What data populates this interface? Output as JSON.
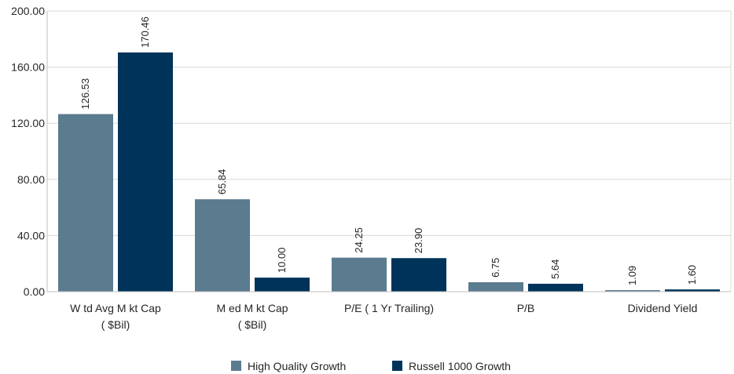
{
  "chart_data": {
    "type": "bar",
    "categories": [
      [
        "W td Avg M kt Cap",
        "( $Bil)"
      ],
      [
        "M ed M kt Cap",
        "( $Bil)"
      ],
      [
        "P/E ( 1 Yr Trailing)"
      ],
      [
        "P/B"
      ],
      [
        "Dividend Yield"
      ]
    ],
    "series": [
      {
        "name": "High Quality Growth",
        "color": "#5b7b8f",
        "values": [
          126.53,
          65.84,
          24.25,
          6.75,
          1.09
        ],
        "labels": [
          "126.53",
          "65.84",
          "24.25",
          "6.75",
          "1.09"
        ]
      },
      {
        "name": "Russell 1000 Growth",
        "color": "#003359",
        "values": [
          170.46,
          10.0,
          23.9,
          5.64,
          1.6
        ],
        "labels": [
          "170.46",
          "10.00",
          "23.90",
          "5.64",
          "1.60"
        ]
      }
    ],
    "ylim": [
      0,
      200
    ],
    "yticks": [
      0,
      40,
      80,
      120,
      160,
      200
    ],
    "ytick_labels": [
      "0.00",
      "40.00",
      "80.00",
      "120.00",
      "160.00",
      "200.00"
    ],
    "grid": true,
    "legend_position": "bottom",
    "title": "",
    "xlabel": "",
    "ylabel": ""
  }
}
